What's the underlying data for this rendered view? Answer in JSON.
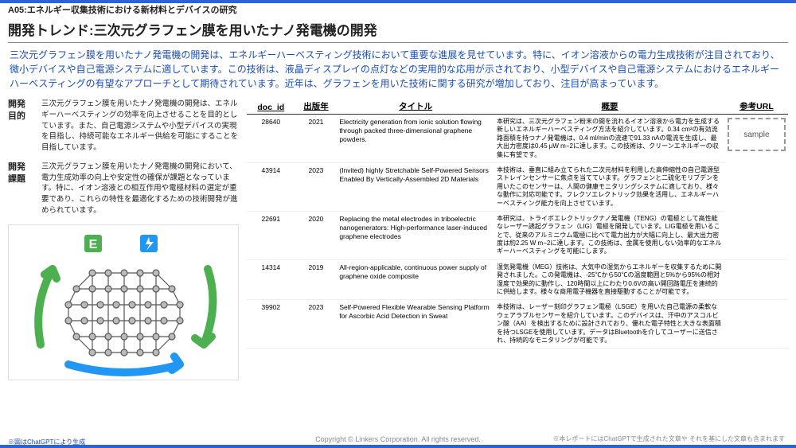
{
  "header": {
    "code": "A05:エネルギー収集技術における新材料とデバイスの研究",
    "title": "開発トレンド:三次元グラフェン膜を用いたナノ発電機の開発",
    "lead": "三次元グラフェン膜を用いたナノ発電機の開発は、エネルギーハーベスティング技術において重要な進展を見せています。特に、イオン溶液からの電力生成技術が注目されており、微小デバイスや自己電源システムに適しています。この技術は、液晶ディスプレイの点灯などの実用的な応用が示されており、小型デバイスや自己電源システムにおけるエネルギーハーベスティングの有望なアプローチとして期待されています。近年は、グラフェンを用いた技術に関する研究が増加しており、注目が高まっています。"
  },
  "sections": {
    "purpose": {
      "label": "開発\n目的",
      "text": "三次元グラフェン膜を用いたナノ発電機の開発は、エネルギーハーベスティングの効率を向上させることを目的としています。また、自己電源システムや小型デバイスの実現を目指し、持続可能なエネルギー供給を可能にすることを目指しています。"
    },
    "issue": {
      "label": "開発\n課題",
      "text": "三次元グラフェン膜を用いたナノ発電機の開発において、電力生成効率の向上や安定性の確保が課題となっています。特に、イオン溶液との相互作用や電極材料の選定が重要であり、これらの特性を最適化するための技術開発が進められています。"
    }
  },
  "illustration": {
    "note": "※図はChatGPTにより生成"
  },
  "table": {
    "headers": {
      "doc": "doc_id",
      "year": "出版年",
      "title": "タイトル",
      "summary": "概要",
      "url": "参考URL"
    },
    "rows": [
      {
        "doc": "28640",
        "year": "2021",
        "title": "Electricity generation from ionic solution flowing through packed three-dimensional graphene powders.",
        "summary": "本研究は、三次元グラフェン粉末の間を流れるイオン溶液から電力を生成する新しいエネルギーハーベスティング方法を紹介しています。0.34 cm²の有効流路面積を持つナノ発電機は、0.4 ml/minの流速で91.33 nAの電流を生成し、最大出力密度は0.45 µW m−2に達します。この技術は、クリーンエネルギーの収集に有望です。",
        "url_sample": true
      },
      {
        "doc": "43914",
        "year": "2023",
        "title": "(Invited) highly Stretchable Self-Powered Sensors Enabled By Vertically-Assembled 2D Materials",
        "summary": "本技術は、垂直に組み立てられた二次元材料を利用した高伸縮性の自己電源型ストレインセンサーに焦点を当てています。グラフェンと二硫化モリブデンを用いたこのセンサーは、人間の健康モニタリングシステムに適しており、様々な動作に対応可能です。フレクソエレクトリック効果を活用し、エネルギーハーベスティング能力を向上させています。"
      },
      {
        "doc": "22691",
        "year": "2020",
        "title": "Replacing the metal electrodes in triboelectric nanogenerators: High-performance laser-induced graphene electrodes",
        "summary": "本研究は、トライボエレクトリックナノ発電機（TENG）の電極として高性能なレーザー誘起グラフェン（LIG）電極を開発しています。LIG電極を用いることで、従来のアルミニウム電極に比べて電力出力が大幅に向上し、最大出力密度は約2.25 W m−2に達します。この技術は、金属を使用しない効率的なエネルギーハーベスティングを可能にします。"
      },
      {
        "doc": "14314",
        "year": "2019",
        "title": "All-region-applicable, continuous power supply of graphene oxide composite",
        "summary": "湿気発電機（MEG）技術は、大気中の湿気からエネルギーを収集するために開発されました。この発電機は、-25℃から50℃の温度範囲と5%から95%の相対湿度で効果的に動作し、120時間以上にわたり0.6Vの高い開回路電圧を連続的に供給します。様々な商用電子機器を直接駆動することが可能です。"
      },
      {
        "doc": "39902",
        "year": "2023",
        "title": "Self-Powered Flexible Wearable Sensing Platform for Ascorbic Acid Detection in Sweat",
        "summary": "本技術は、レーザー刻印グラフェン電極（LSGE）を用いた自己電源の柔軟なウェアラブルセンサーを紹介しています。このデバイスは、汗中のアスコルビン酸（AA）を検出するために設計されており、優れた電子特性と大きな表面積を持つLSGEを使用しています。データはBluetoothを介してユーザーに送信され、持続的なモニタリングが可能です。"
      }
    ]
  },
  "footer": {
    "copyright": "Copyright © Linkers Corporation. All rights reserved.",
    "note": "※本レポートにはChatGPTで生成された文章や それを基にした文章も含まれます"
  },
  "sample_label": "sample"
}
